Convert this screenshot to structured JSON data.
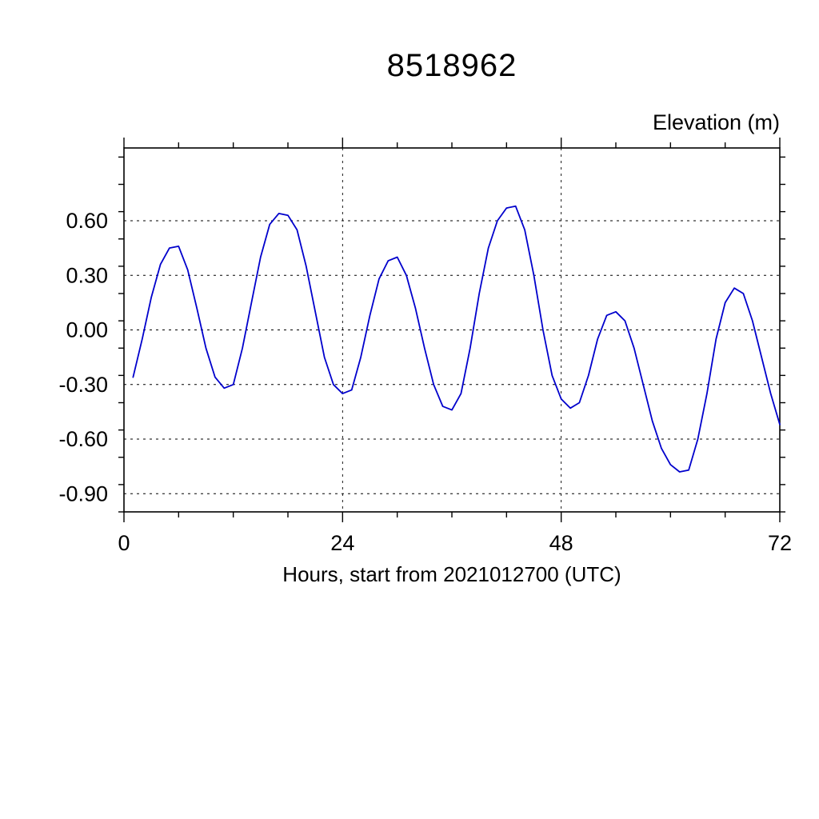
{
  "chart_data": {
    "type": "line",
    "title": "8518962",
    "ylabel": "Elevation (m)",
    "xlabel": "Hours, start from 2021012700 (UTC)",
    "xlim": [
      0,
      72
    ],
    "ylim": [
      -1.0,
      1.0
    ],
    "xticks": [
      0,
      24,
      48,
      72
    ],
    "x_minor_step": 6,
    "ytick_gridlines": [
      0.6,
      0.3,
      0.0,
      -0.3,
      -0.6,
      -0.9
    ],
    "y_major_step": 0.3,
    "y_minor_step": 0.15,
    "line_color": "#0000cc",
    "x": [
      1,
      2,
      3,
      4,
      5,
      6,
      7,
      8,
      9,
      10,
      11,
      12,
      13,
      14,
      15,
      16,
      17,
      18,
      19,
      20,
      21,
      22,
      23,
      24,
      25,
      26,
      27,
      28,
      29,
      30,
      31,
      32,
      33,
      34,
      35,
      36,
      37,
      38,
      39,
      40,
      41,
      42,
      43,
      44,
      45,
      46,
      47,
      48,
      49,
      50,
      51,
      52,
      53,
      54,
      55,
      56,
      57,
      58,
      59,
      60,
      61,
      62,
      63,
      64,
      65,
      66,
      67,
      68,
      69,
      70,
      71,
      72
    ],
    "values": [
      -0.26,
      -0.05,
      0.18,
      0.36,
      0.45,
      0.46,
      0.33,
      0.12,
      -0.1,
      -0.26,
      -0.32,
      -0.3,
      -0.1,
      0.15,
      0.4,
      0.58,
      0.64,
      0.63,
      0.55,
      0.35,
      0.1,
      -0.15,
      -0.3,
      -0.35,
      -0.33,
      -0.15,
      0.08,
      0.28,
      0.38,
      0.4,
      0.3,
      0.12,
      -0.1,
      -0.3,
      -0.42,
      -0.44,
      -0.35,
      -0.1,
      0.2,
      0.45,
      0.6,
      0.67,
      0.68,
      0.55,
      0.3,
      0.0,
      -0.25,
      -0.38,
      -0.43,
      -0.4,
      -0.25,
      -0.05,
      0.08,
      0.1,
      0.05,
      -0.1,
      -0.3,
      -0.5,
      -0.65,
      -0.74,
      -0.78,
      -0.77,
      -0.6,
      -0.35,
      -0.05,
      0.15,
      0.23,
      0.2,
      0.05,
      -0.15,
      -0.35,
      -0.52
    ]
  }
}
